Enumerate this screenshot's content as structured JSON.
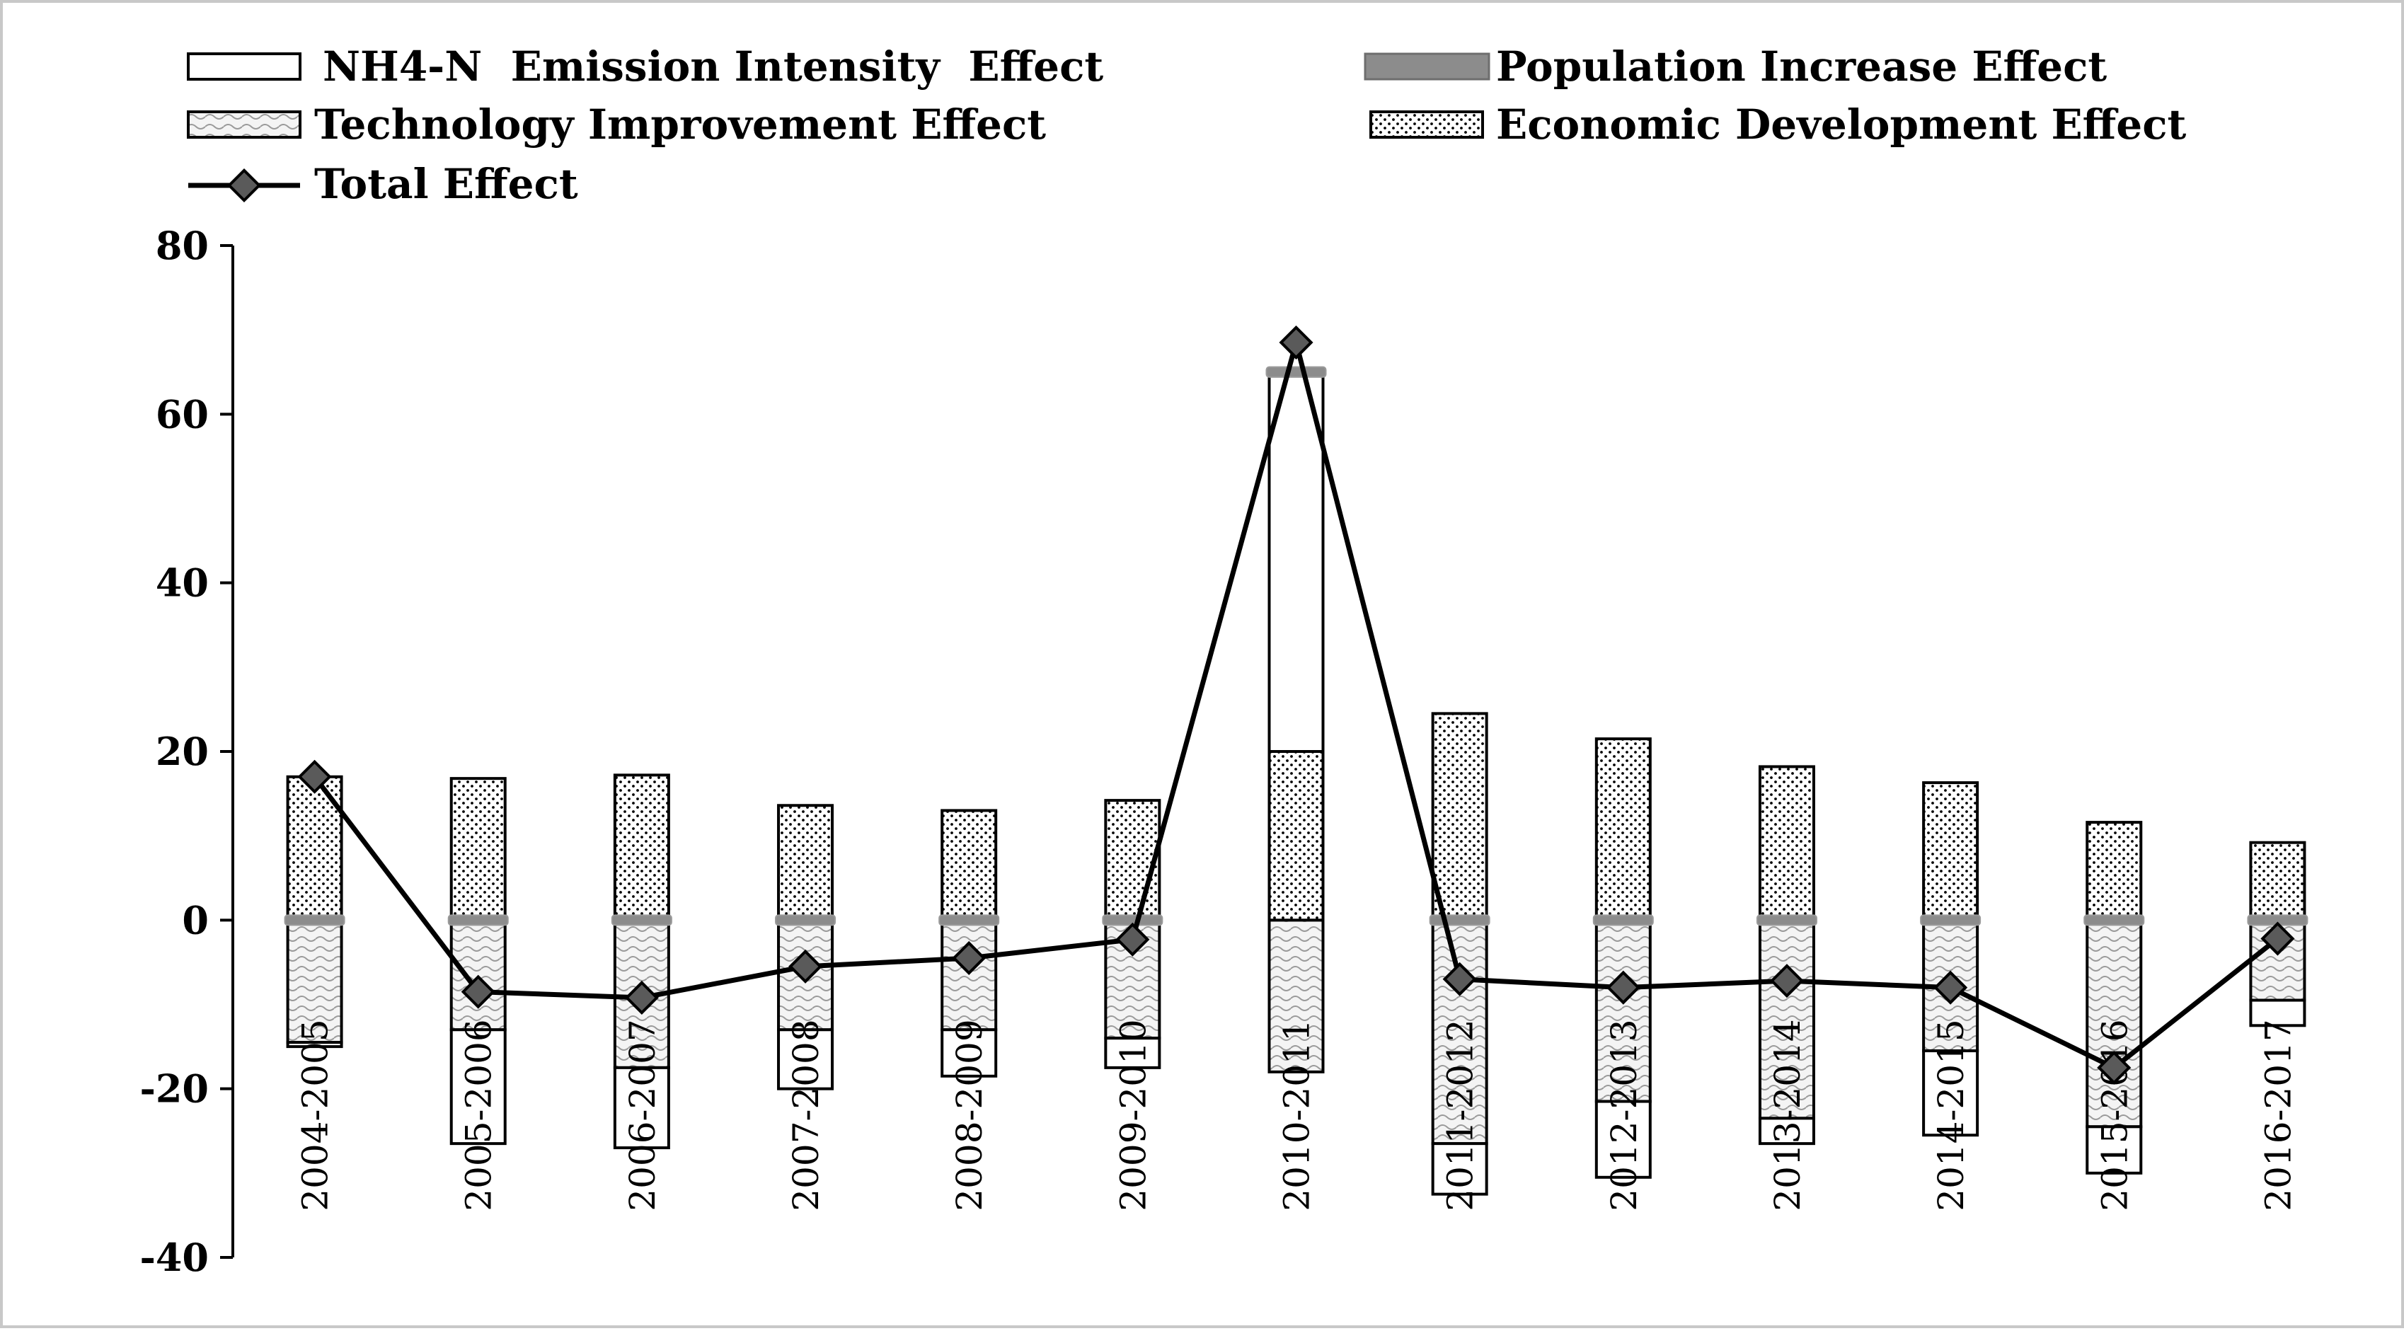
{
  "chart_data": {
    "type": "bar",
    "stacked": true,
    "title": "",
    "xlabel": "",
    "ylabel": "",
    "ylim": [
      -40,
      80
    ],
    "yticks": [
      -40,
      -20,
      0,
      20,
      40,
      60,
      80
    ],
    "grid": false,
    "legend_position": "top",
    "categories": [
      "2004-2005",
      "2005-2006",
      "2006-2007",
      "2007-2008",
      "2008-2009",
      "2009-2010",
      "2010-2011",
      "2011-2012",
      "2012-2013",
      "2013-2014",
      "2014-2015",
      "2015-2016",
      "2016-2017"
    ],
    "series": [
      {
        "name": "NH4-N  Emission Intensity  Effect",
        "pattern": "white",
        "values": [
          -0.5,
          -13.5,
          -9.5,
          -7,
          -5.5,
          -3.5,
          45,
          -6,
          -9,
          -3,
          -10,
          -5.5,
          -3
        ]
      },
      {
        "name": "Population Increase Effect",
        "pattern": "gray",
        "values": [
          0.6,
          0.6,
          0.6,
          0.6,
          0.6,
          0.6,
          1.2,
          0.6,
          0.6,
          0.6,
          0.6,
          0.6,
          0.6
        ]
      },
      {
        "name": "Technology Improvement Effect",
        "pattern": "wavy",
        "values": [
          -14.5,
          -13,
          -17.5,
          -13,
          -13,
          -14,
          -18,
          -26.5,
          -21.5,
          -23.5,
          -15.5,
          -24.5,
          -9.5
        ]
      },
      {
        "name": "Economic Development Effect",
        "pattern": "dots",
        "values": [
          17,
          16.8,
          17.2,
          13.6,
          13,
          14.2,
          20,
          24.5,
          21.5,
          18.2,
          16.3,
          11.6,
          9.2
        ]
      }
    ],
    "line": {
      "name": "Total Effect",
      "values": [
        17,
        -8.5,
        -9.2,
        -5.5,
        -4.5,
        -2.3,
        68.5,
        -7,
        -8,
        -7.2,
        -8,
        -17.5,
        -2.2
      ]
    }
  },
  "colors": {
    "axis": "#000000",
    "population": "#8c8c8c",
    "marker": "#5a5a5a",
    "frame": "#c8c8c8"
  }
}
